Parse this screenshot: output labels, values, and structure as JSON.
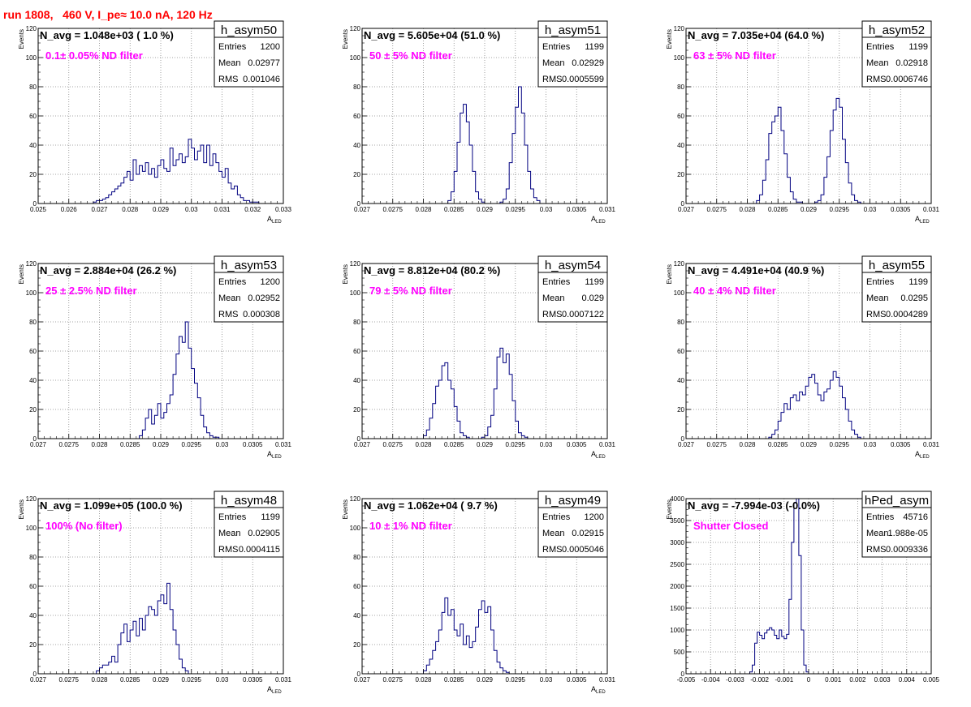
{
  "page": {
    "title": "run 1808,   460 V, I_pe≈ 10.0 nA, 120 Hz"
  },
  "colors": {
    "title": "#ff0000",
    "annotation": "#ff00ff",
    "line": "#000080",
    "grid": "#888888"
  },
  "chart_data": [
    {
      "type": "histogram",
      "name": "h_asym50",
      "navg": "N_avg = 1.048e+03 ( 1.0 %)",
      "filter": "0.1± 0.05% ND filter",
      "stats": {
        "entries": "1200",
        "mean": "0.02977",
        "rms": "0.001046"
      },
      "ylabel": "Events",
      "xlabel": "A",
      "xlabel_sub": "LED",
      "xlim": [
        0.025,
        0.033
      ],
      "ylim": [
        0,
        120
      ],
      "xticks": [
        "0.025",
        "0.026",
        "0.027",
        "0.028",
        "0.029",
        "0.03",
        "0.031",
        "0.032",
        "0.033"
      ],
      "yticks": [
        "0",
        "20",
        "40",
        "60",
        "80",
        "100",
        "120"
      ],
      "bin_start": 0.0268,
      "bin_width": 0.0001,
      "counts": [
        1,
        2,
        2,
        3,
        4,
        6,
        8,
        10,
        12,
        14,
        18,
        22,
        16,
        30,
        20,
        26,
        22,
        28,
        20,
        24,
        18,
        26,
        30,
        24,
        22,
        38,
        26,
        30,
        34,
        28,
        32,
        44,
        38,
        30,
        36,
        40,
        28,
        40,
        26,
        34,
        28,
        22,
        18,
        24,
        14,
        10,
        12,
        6,
        4,
        2,
        2,
        1,
        1,
        1
      ]
    },
    {
      "type": "histogram",
      "name": "h_asym51",
      "navg": "N_avg = 5.605e+04 (51.0 %)",
      "filter": "50 ± 5% ND filter",
      "stats": {
        "entries": "1199",
        "mean": "0.02929",
        "rms": "0.0005599"
      },
      "ylabel": "Events",
      "xlabel": "A",
      "xlabel_sub": "LED",
      "xlim": [
        0.027,
        0.031
      ],
      "ylim": [
        0,
        120
      ],
      "xticks": [
        "0.027",
        "0.0275",
        "0.028",
        "0.0285",
        "0.029",
        "0.0295",
        "0.03",
        "0.0305",
        "0.031"
      ],
      "yticks": [
        "0",
        "20",
        "40",
        "60",
        "80",
        "100",
        "120"
      ],
      "bin_start": 0.0284,
      "bin_width": 5e-05,
      "counts": [
        2,
        8,
        22,
        42,
        62,
        68,
        56,
        40,
        22,
        8,
        3,
        1,
        0,
        0,
        0,
        0,
        0,
        1,
        3,
        10,
        28,
        48,
        66,
        80,
        62,
        40,
        22,
        10,
        4,
        2
      ]
    },
    {
      "type": "histogram",
      "name": "h_asym52",
      "navg": "N_avg = 7.035e+04 (64.0 %)",
      "filter": "63 ± 5% ND filter",
      "stats": {
        "entries": "1199",
        "mean": "0.02918",
        "rms": "0.0006746"
      },
      "ylabel": "Events",
      "xlabel": "A",
      "xlabel_sub": "LED",
      "xlim": [
        0.027,
        0.031
      ],
      "ylim": [
        0,
        120
      ],
      "xticks": [
        "0.027",
        "0.0275",
        "0.028",
        "0.0285",
        "0.029",
        "0.0295",
        "0.03",
        "0.0305",
        "0.031"
      ],
      "yticks": [
        "0",
        "20",
        "40",
        "60",
        "80",
        "100",
        "120"
      ],
      "bin_start": 0.02815,
      "bin_width": 5e-05,
      "counts": [
        2,
        6,
        16,
        30,
        48,
        56,
        60,
        66,
        50,
        34,
        18,
        8,
        3,
        1,
        1,
        0,
        0,
        0,
        0,
        1,
        2,
        6,
        18,
        32,
        50,
        64,
        72,
        66,
        44,
        28,
        14,
        6,
        2,
        1
      ]
    },
    {
      "type": "histogram",
      "name": "h_asym53",
      "navg": "N_avg = 2.884e+04 (26.2 %)",
      "filter": "25 ± 2.5% ND filter",
      "stats": {
        "entries": "1200",
        "mean": "0.02952",
        "rms": "0.000308"
      },
      "ylabel": "Events",
      "xlabel": "A",
      "xlabel_sub": "LED",
      "xlim": [
        0.027,
        0.031
      ],
      "ylim": [
        0,
        120
      ],
      "xticks": [
        "0.027",
        "0.0275",
        "0.028",
        "0.0285",
        "0.029",
        "0.0295",
        "0.03",
        "0.0305",
        "0.031"
      ],
      "yticks": [
        "0",
        "20",
        "40",
        "60",
        "80",
        "100",
        "120"
      ],
      "bin_start": 0.02865,
      "bin_width": 5e-05,
      "counts": [
        2,
        6,
        14,
        20,
        10,
        16,
        24,
        14,
        18,
        24,
        30,
        44,
        58,
        70,
        66,
        80,
        62,
        48,
        38,
        28,
        16,
        8,
        4,
        2,
        1,
        1
      ]
    },
    {
      "type": "histogram",
      "name": "h_asym54",
      "navg": "N_avg = 8.812e+04 (80.2 %)",
      "filter": "79 ± 5% ND filter",
      "stats": {
        "entries": "1199",
        "mean": "0.029",
        "rms": "0.0007122"
      },
      "ylabel": "Events",
      "xlabel": "A",
      "xlabel_sub": "LED",
      "xlim": [
        0.027,
        0.031
      ],
      "ylim": [
        0,
        120
      ],
      "xticks": [
        "0.027",
        "0.0275",
        "0.028",
        "0.0285",
        "0.029",
        "0.0295",
        "0.03",
        "0.0305",
        "0.031"
      ],
      "yticks": [
        "0",
        "20",
        "40",
        "60",
        "80",
        "100",
        "120"
      ],
      "bin_start": 0.028,
      "bin_width": 5e-05,
      "counts": [
        2,
        6,
        14,
        24,
        36,
        40,
        50,
        52,
        40,
        34,
        22,
        12,
        4,
        2,
        1,
        0,
        0,
        0,
        0,
        1,
        2,
        8,
        16,
        34,
        56,
        62,
        52,
        58,
        44,
        26,
        12,
        4,
        2,
        1
      ]
    },
    {
      "type": "histogram",
      "name": "h_asym55",
      "navg": "N_avg = 4.491e+04 (40.9 %)",
      "filter": "40 ± 4% ND filter",
      "stats": {
        "entries": "1199",
        "mean": "0.0295",
        "rms": "0.0004289"
      },
      "ylabel": "Events",
      "xlabel": "A",
      "xlabel_sub": "LED",
      "xlim": [
        0.027,
        0.031
      ],
      "ylim": [
        0,
        120
      ],
      "xticks": [
        "0.027",
        "0.0275",
        "0.028",
        "0.0285",
        "0.029",
        "0.0295",
        "0.03",
        "0.0305",
        "0.031"
      ],
      "yticks": [
        "0",
        "20",
        "40",
        "60",
        "80",
        "100",
        "120"
      ],
      "bin_start": 0.02835,
      "bin_width": 5e-05,
      "counts": [
        1,
        3,
        6,
        12,
        18,
        24,
        20,
        28,
        30,
        26,
        32,
        30,
        36,
        42,
        44,
        38,
        30,
        26,
        32,
        34,
        40,
        46,
        42,
        36,
        28,
        20,
        12,
        6,
        3,
        1
      ]
    },
    {
      "type": "histogram",
      "name": "h_asym48",
      "navg": "N_avg = 1.099e+05 (100.0 %)",
      "filter": "100% (No filter)",
      "stats": {
        "entries": "1199",
        "mean": "0.02905",
        "rms": "0.0004115"
      },
      "ylabel": "Events",
      "xlabel": "A",
      "xlabel_sub": "LED",
      "xlim": [
        0.027,
        0.031
      ],
      "ylim": [
        0,
        120
      ],
      "xticks": [
        "0.027",
        "0.0275",
        "0.028",
        "0.0285",
        "0.029",
        "0.0295",
        "0.03",
        "0.0305",
        "0.031"
      ],
      "yticks": [
        "0",
        "20",
        "40",
        "60",
        "80",
        "100",
        "120"
      ],
      "bin_start": 0.02795,
      "bin_width": 5e-05,
      "counts": [
        2,
        4,
        6,
        6,
        8,
        12,
        8,
        20,
        28,
        34,
        22,
        30,
        36,
        26,
        38,
        30,
        40,
        46,
        44,
        40,
        50,
        54,
        48,
        62,
        44,
        30,
        20,
        10,
        4,
        2
      ]
    },
    {
      "type": "histogram",
      "name": "h_asym49",
      "navg": "N_avg = 1.062e+04 ( 9.7 %)",
      "filter": "10 ± 1% ND filter",
      "stats": {
        "entries": "1200",
        "mean": "0.02915",
        "rms": "0.0005046"
      },
      "ylabel": "Events",
      "xlabel": "A",
      "xlabel_sub": "LED",
      "xlim": [
        0.027,
        0.031
      ],
      "ylim": [
        0,
        120
      ],
      "xticks": [
        "0.027",
        "0.0275",
        "0.028",
        "0.0285",
        "0.029",
        "0.0295",
        "0.03",
        "0.0305",
        "0.031"
      ],
      "yticks": [
        "0",
        "20",
        "40",
        "60",
        "80",
        "100",
        "120"
      ],
      "bin_start": 0.028,
      "bin_width": 5e-05,
      "counts": [
        2,
        6,
        10,
        16,
        22,
        30,
        42,
        52,
        40,
        44,
        30,
        26,
        34,
        20,
        26,
        18,
        22,
        32,
        44,
        50,
        42,
        46,
        30,
        16,
        8,
        4,
        2,
        1
      ]
    },
    {
      "type": "histogram",
      "name": "hPed_asym",
      "navg": "N_avg = -7.994e-03 (-0.0%)",
      "filter": "Shutter Closed",
      "stats": {
        "entries": "45716",
        "mean": "1.988e-05",
        "rms": "0.0009336"
      },
      "ylabel": "Events",
      "xlabel": "",
      "xlabel_sub": "",
      "xlim": [
        -0.005,
        0.005
      ],
      "ylim": [
        0,
        4000
      ],
      "xticks": [
        "-0.005",
        "-0.004",
        "-0.003",
        "-0.002",
        "-0.001",
        "0",
        "0.001",
        "0.002",
        "0.003",
        "0.004",
        "0.005"
      ],
      "yticks": [
        "0",
        "500",
        "1000",
        "1500",
        "2000",
        "2500",
        "3000",
        "3500",
        "4000"
      ],
      "bin_start": -0.0024,
      "bin_width": 0.0001,
      "counts": [
        40,
        200,
        700,
        950,
        880,
        800,
        930,
        1000,
        1050,
        1000,
        880,
        800,
        1000,
        850,
        800,
        900,
        1700,
        3000,
        3900,
        4000,
        2700,
        1000,
        200,
        40
      ]
    }
  ]
}
